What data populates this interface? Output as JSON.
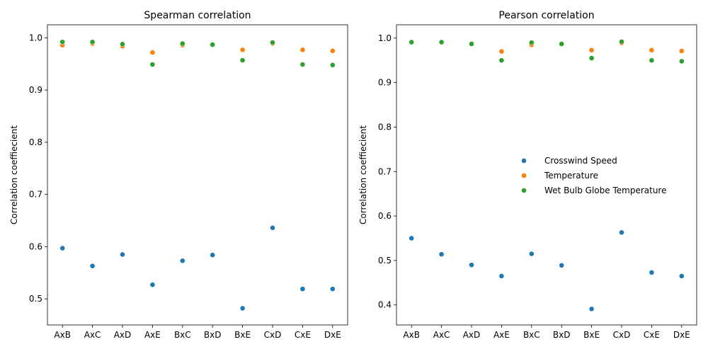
{
  "chart_data": [
    {
      "type": "scatter",
      "title": "Spearman correlation",
      "xlabel": "",
      "ylabel": "Correlation coeffiecient",
      "categories": [
        "AxB",
        "AxC",
        "AxD",
        "AxE",
        "BxC",
        "BxD",
        "BxE",
        "CxD",
        "CxE",
        "DxE"
      ],
      "ylim": [
        0.45,
        1.025
      ],
      "yticks": [
        0.5,
        0.6,
        0.7,
        0.8,
        0.9,
        1.0
      ],
      "yticklabels": [
        "0.5",
        "0.6",
        "0.7",
        "0.8",
        "0.9",
        "1.0"
      ],
      "grid": false,
      "series": [
        {
          "name": "Crosswind Speed",
          "color": "#1f77b4",
          "values": [
            0.597,
            0.563,
            0.585,
            0.527,
            0.573,
            0.584,
            0.482,
            0.636,
            0.519,
            0.519
          ]
        },
        {
          "name": "Temperature",
          "color": "#ff7f0e",
          "values": [
            0.986,
            0.989,
            0.984,
            0.972,
            0.986,
            0.987,
            0.977,
            0.989,
            0.977,
            0.975
          ]
        },
        {
          "name": "Wet Bulb Globe Temperature",
          "color": "#2ca02c",
          "values": [
            0.992,
            0.992,
            0.988,
            0.949,
            0.989,
            0.987,
            0.957,
            0.991,
            0.949,
            0.948
          ]
        }
      ]
    },
    {
      "type": "scatter",
      "title": "Pearson correlation",
      "xlabel": "",
      "ylabel": "Correlation coeffiecient",
      "categories": [
        "AxB",
        "AxC",
        "AxD",
        "AxE",
        "BxC",
        "BxD",
        "BxE",
        "CxD",
        "CxE",
        "DxE"
      ],
      "ylim": [
        0.355,
        1.03
      ],
      "yticks": [
        0.4,
        0.5,
        0.6,
        0.7,
        0.8,
        0.9,
        1.0
      ],
      "yticklabels": [
        "0.4",
        "0.5",
        "0.6",
        "0.7",
        "0.8",
        "0.9",
        "1.0"
      ],
      "grid": false,
      "legend_location": "center-right",
      "series": [
        {
          "name": "Crosswind Speed",
          "color": "#1f77b4",
          "values": [
            0.55,
            0.514,
            0.49,
            0.465,
            0.515,
            0.489,
            0.391,
            0.563,
            0.473,
            0.465
          ]
        },
        {
          "name": "Temperature",
          "color": "#ff7f0e",
          "values": [
            0.99,
            0.99,
            0.987,
            0.97,
            0.985,
            0.987,
            0.973,
            0.989,
            0.973,
            0.971
          ]
        },
        {
          "name": "Wet Bulb Globe Temperature",
          "color": "#2ca02c",
          "values": [
            0.991,
            0.991,
            0.987,
            0.95,
            0.99,
            0.987,
            0.955,
            0.992,
            0.95,
            0.948
          ]
        }
      ]
    }
  ]
}
